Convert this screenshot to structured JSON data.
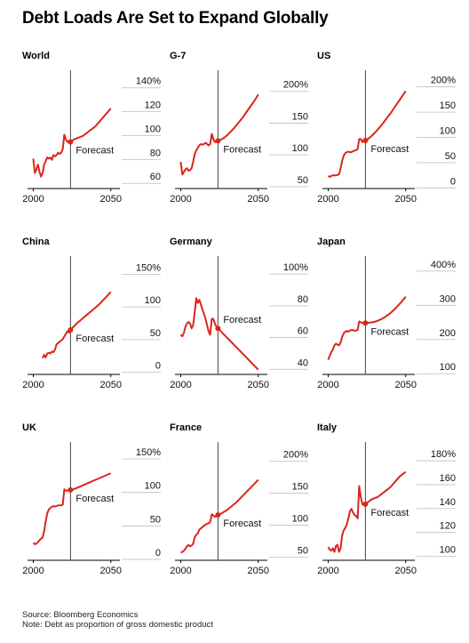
{
  "title": "Debt Loads Are Set to Expand Globally",
  "colors": {
    "line": "#d9261c",
    "axis": "#000000",
    "grid": "#bdbdbd",
    "forecast_line": "#444444"
  },
  "forecast_label": "Forecast",
  "source": "Source: Bloomberg Economics",
  "note": "Note: Debt as proportion of gross domestic product",
  "chart_data": [
    {
      "type": "line",
      "title": "World",
      "x_ticks": [
        "2000",
        "2050"
      ],
      "y_ticks": [
        "140%",
        "120",
        "100",
        "80",
        "60"
      ],
      "ylim": [
        52,
        145
      ],
      "xlim": [
        1998,
        2053
      ],
      "forecast_start": 2024,
      "series": [
        {
          "x": [
            2000,
            2001,
            2002,
            2003,
            2004,
            2005,
            2006,
            2007,
            2008,
            2009,
            2010,
            2011,
            2012,
            2013,
            2014,
            2015,
            2016,
            2017,
            2018,
            2019,
            2020,
            2021,
            2022,
            2023,
            2024,
            2025,
            2026,
            2028,
            2030,
            2032,
            2034,
            2036,
            2038,
            2040,
            2042,
            2044,
            2046,
            2048,
            2050
          ],
          "y": [
            77,
            65,
            68,
            72,
            66,
            62,
            65,
            72,
            75,
            78,
            77,
            78,
            76,
            80,
            79,
            80,
            82,
            81,
            82,
            85,
            97,
            93,
            91,
            92,
            91,
            92,
            93,
            94,
            95,
            96,
            98,
            100,
            102,
            104,
            107,
            110,
            113,
            116,
            119
          ]
        }
      ]
    },
    {
      "type": "line",
      "title": "G-7",
      "x_ticks": [
        "2000",
        "2050"
      ],
      "y_ticks": [
        "200%",
        "150",
        "100",
        "50"
      ],
      "ylim": [
        40,
        215
      ],
      "xlim": [
        1998,
        2053
      ],
      "forecast_start": 2024,
      "series": [
        {
          "x": [
            2000,
            2001,
            2002,
            2003,
            2004,
            2005,
            2006,
            2007,
            2008,
            2009,
            2010,
            2011,
            2012,
            2013,
            2014,
            2015,
            2016,
            2017,
            2018,
            2019,
            2020,
            2021,
            2022,
            2023,
            2024,
            2026,
            2028,
            2030,
            2032,
            2034,
            2036,
            2038,
            2040,
            2042,
            2044,
            2046,
            2048,
            2050
          ],
          "y": [
            82,
            62,
            66,
            70,
            72,
            68,
            69,
            72,
            82,
            94,
            100,
            104,
            108,
            110,
            109,
            110,
            112,
            110,
            108,
            110,
            126,
            118,
            113,
            114,
            115,
            117,
            120,
            124,
            129,
            134,
            140,
            146,
            152,
            159,
            166,
            173,
            180,
            188
          ]
        }
      ]
    },
    {
      "type": "line",
      "title": "US",
      "x_ticks": [
        "2000",
        "2050"
      ],
      "y_ticks": [
        "200%",
        "150",
        "100",
        "50",
        "0"
      ],
      "ylim": [
        -10,
        210
      ],
      "xlim": [
        1998,
        2053
      ],
      "forecast_start": 2024,
      "series": [
        {
          "x": [
            2000,
            2001,
            2002,
            2003,
            2004,
            2005,
            2006,
            2007,
            2008,
            2009,
            2010,
            2011,
            2012,
            2013,
            2014,
            2015,
            2016,
            2017,
            2018,
            2019,
            2020,
            2021,
            2022,
            2023,
            2024,
            2026,
            2028,
            2030,
            2032,
            2034,
            2036,
            2038,
            2040,
            2042,
            2044,
            2046,
            2048,
            2050
          ],
          "y": [
            15,
            13,
            15,
            16,
            16,
            16,
            17,
            18,
            30,
            45,
            55,
            60,
            62,
            63,
            62,
            62,
            64,
            65,
            66,
            68,
            88,
            88,
            82,
            84,
            85,
            89,
            94,
            100,
            107,
            114,
            122,
            130,
            138,
            147,
            156,
            165,
            174,
            183
          ]
        }
      ]
    },
    {
      "type": "line",
      "title": "China",
      "x_ticks": [
        "2000",
        "2050"
      ],
      "y_ticks": [
        "150%",
        "100",
        "50",
        "0"
      ],
      "ylim": [
        -10,
        160
      ],
      "xlim": [
        1998,
        2053
      ],
      "forecast_start": 2024,
      "series": [
        {
          "x": [
            2006,
            2007,
            2008,
            2009,
            2010,
            2011,
            2012,
            2013,
            2014,
            2015,
            2016,
            2017,
            2018,
            2019,
            2020,
            2021,
            2022,
            2023,
            2024,
            2026,
            2028,
            2030,
            2032,
            2034,
            2036,
            2038,
            2040,
            2042,
            2044,
            2046,
            2048,
            2050
          ],
          "y": [
            15,
            20,
            16,
            22,
            23,
            22,
            25,
            24,
            28,
            36,
            38,
            40,
            42,
            44,
            48,
            52,
            56,
            54,
            58,
            63,
            68,
            72,
            76,
            80,
            84,
            88,
            92,
            96,
            101,
            106,
            111,
            116
          ]
        }
      ]
    },
    {
      "type": "line",
      "title": "Germany",
      "x_ticks": [
        "2000",
        "2050"
      ],
      "y_ticks": [
        "100%",
        "80",
        "60",
        "40"
      ],
      "ylim": [
        34,
        104
      ],
      "xlim": [
        1998,
        2053
      ],
      "forecast_start": 2024,
      "series": [
        {
          "x": [
            2000,
            2001,
            2002,
            2003,
            2004,
            2005,
            2006,
            2007,
            2008,
            2009,
            2010,
            2011,
            2012,
            2013,
            2014,
            2015,
            2016,
            2017,
            2018,
            2019,
            2020,
            2021,
            2022,
            2023,
            2024,
            2026,
            2028,
            2030,
            2032,
            2034,
            2036,
            2038,
            2040,
            2042,
            2044,
            2046,
            2048,
            2050
          ],
          "y": [
            59,
            58,
            60,
            64,
            66,
            67,
            66,
            63,
            65,
            73,
            82,
            79,
            81,
            78,
            75,
            72,
            69,
            65,
            61,
            59,
            69,
            69,
            66,
            64,
            63,
            61,
            59,
            57,
            55,
            53,
            51,
            49,
            47,
            45,
            43,
            41,
            39,
            37
          ]
        }
      ]
    },
    {
      "type": "line",
      "title": "Japan",
      "x_ticks": [
        "2000",
        "2050"
      ],
      "y_ticks": [
        "400%",
        "300",
        "200",
        "100"
      ],
      "ylim": [
        85,
        410
      ],
      "xlim": [
        1998,
        2053
      ],
      "forecast_start": 2024,
      "series": [
        {
          "x": [
            2000,
            2001,
            2002,
            2003,
            2004,
            2005,
            2006,
            2007,
            2008,
            2009,
            2010,
            2011,
            2012,
            2013,
            2014,
            2015,
            2016,
            2017,
            2018,
            2019,
            2020,
            2021,
            2022,
            2023,
            2024,
            2026,
            2028,
            2030,
            2032,
            2034,
            2036,
            2038,
            2040,
            2042,
            2044,
            2046,
            2048,
            2050
          ],
          "y": [
            128,
            140,
            150,
            158,
            170,
            175,
            172,
            170,
            178,
            195,
            205,
            210,
            212,
            210,
            213,
            215,
            214,
            213,
            213,
            215,
            240,
            238,
            235,
            236,
            235,
            236,
            237,
            239,
            242,
            246,
            251,
            257,
            264,
            272,
            281,
            291,
            301,
            312
          ]
        }
      ]
    },
    {
      "type": "line",
      "title": "UK",
      "x_ticks": [
        "2000",
        "2050"
      ],
      "y_ticks": [
        "150%",
        "100",
        "50",
        "0"
      ],
      "ylim": [
        -8,
        158
      ],
      "xlim": [
        1998,
        2053
      ],
      "forecast_start": 2024,
      "series": [
        {
          "x": [
            2000,
            2001,
            2002,
            2003,
            2004,
            2005,
            2006,
            2007,
            2008,
            2009,
            2010,
            2011,
            2012,
            2013,
            2014,
            2015,
            2016,
            2017,
            2018,
            2019,
            2020,
            2021,
            2022,
            2023,
            2024,
            2026,
            2028,
            2030,
            2032,
            2034,
            2036,
            2038,
            2040,
            2042,
            2044,
            2046,
            2048,
            2050
          ],
          "y": [
            18,
            16,
            17,
            19,
            22,
            24,
            26,
            36,
            50,
            62,
            68,
            70,
            72,
            73,
            72,
            73,
            74,
            74,
            74,
            75,
            98,
            96,
            96,
            97,
            97,
            98,
            100,
            102,
            104,
            106,
            108,
            110,
            112,
            114,
            116,
            118,
            120,
            122
          ]
        }
      ]
    },
    {
      "type": "line",
      "title": "France",
      "x_ticks": [
        "2000",
        "2050"
      ],
      "y_ticks": [
        "200%",
        "150",
        "100",
        "50"
      ],
      "ylim": [
        38,
        212
      ],
      "xlim": [
        1998,
        2053
      ],
      "forecast_start": 2024,
      "series": [
        {
          "x": [
            2000,
            2001,
            2002,
            2003,
            2004,
            2005,
            2006,
            2007,
            2008,
            2009,
            2010,
            2011,
            2012,
            2013,
            2014,
            2015,
            2016,
            2017,
            2018,
            2019,
            2020,
            2021,
            2022,
            2023,
            2024,
            2026,
            2028,
            2030,
            2032,
            2034,
            2036,
            2038,
            2040,
            2042,
            2044,
            2046,
            2048,
            2050
          ],
          "y": [
            50,
            51,
            53,
            56,
            60,
            62,
            60,
            61,
            64,
            74,
            78,
            80,
            86,
            88,
            90,
            92,
            94,
            95,
            96,
            98,
            110,
            108,
            106,
            108,
            109,
            111,
            114,
            117,
            121,
            125,
            129,
            134,
            139,
            144,
            149,
            154,
            159,
            164
          ]
        }
      ]
    },
    {
      "type": "line",
      "title": "Italy",
      "x_ticks": [
        "2000",
        "2050"
      ],
      "y_ticks": [
        "180%",
        "160",
        "140",
        "120",
        "100"
      ],
      "ylim": [
        93,
        186
      ],
      "xlim": [
        1998,
        2053
      ],
      "forecast_start": 2024,
      "series": [
        {
          "x": [
            2000,
            2001,
            2002,
            2003,
            2004,
            2005,
            2006,
            2007,
            2008,
            2009,
            2010,
            2011,
            2012,
            2013,
            2014,
            2015,
            2016,
            2017,
            2018,
            2019,
            2020,
            2021,
            2022,
            2023,
            2024,
            2026,
            2028,
            2030,
            2032,
            2034,
            2036,
            2038,
            2040,
            2042,
            2044,
            2046,
            2048,
            2050
          ],
          "y": [
            104,
            102,
            101,
            103,
            100,
            105,
            106,
            100,
            103,
            114,
            118,
            120,
            123,
            128,
            134,
            136,
            133,
            131,
            130,
            128,
            155,
            146,
            140,
            139,
            140,
            142,
            144,
            145,
            146,
            148,
            150,
            152,
            154,
            157,
            160,
            163,
            165,
            167
          ]
        }
      ]
    }
  ]
}
